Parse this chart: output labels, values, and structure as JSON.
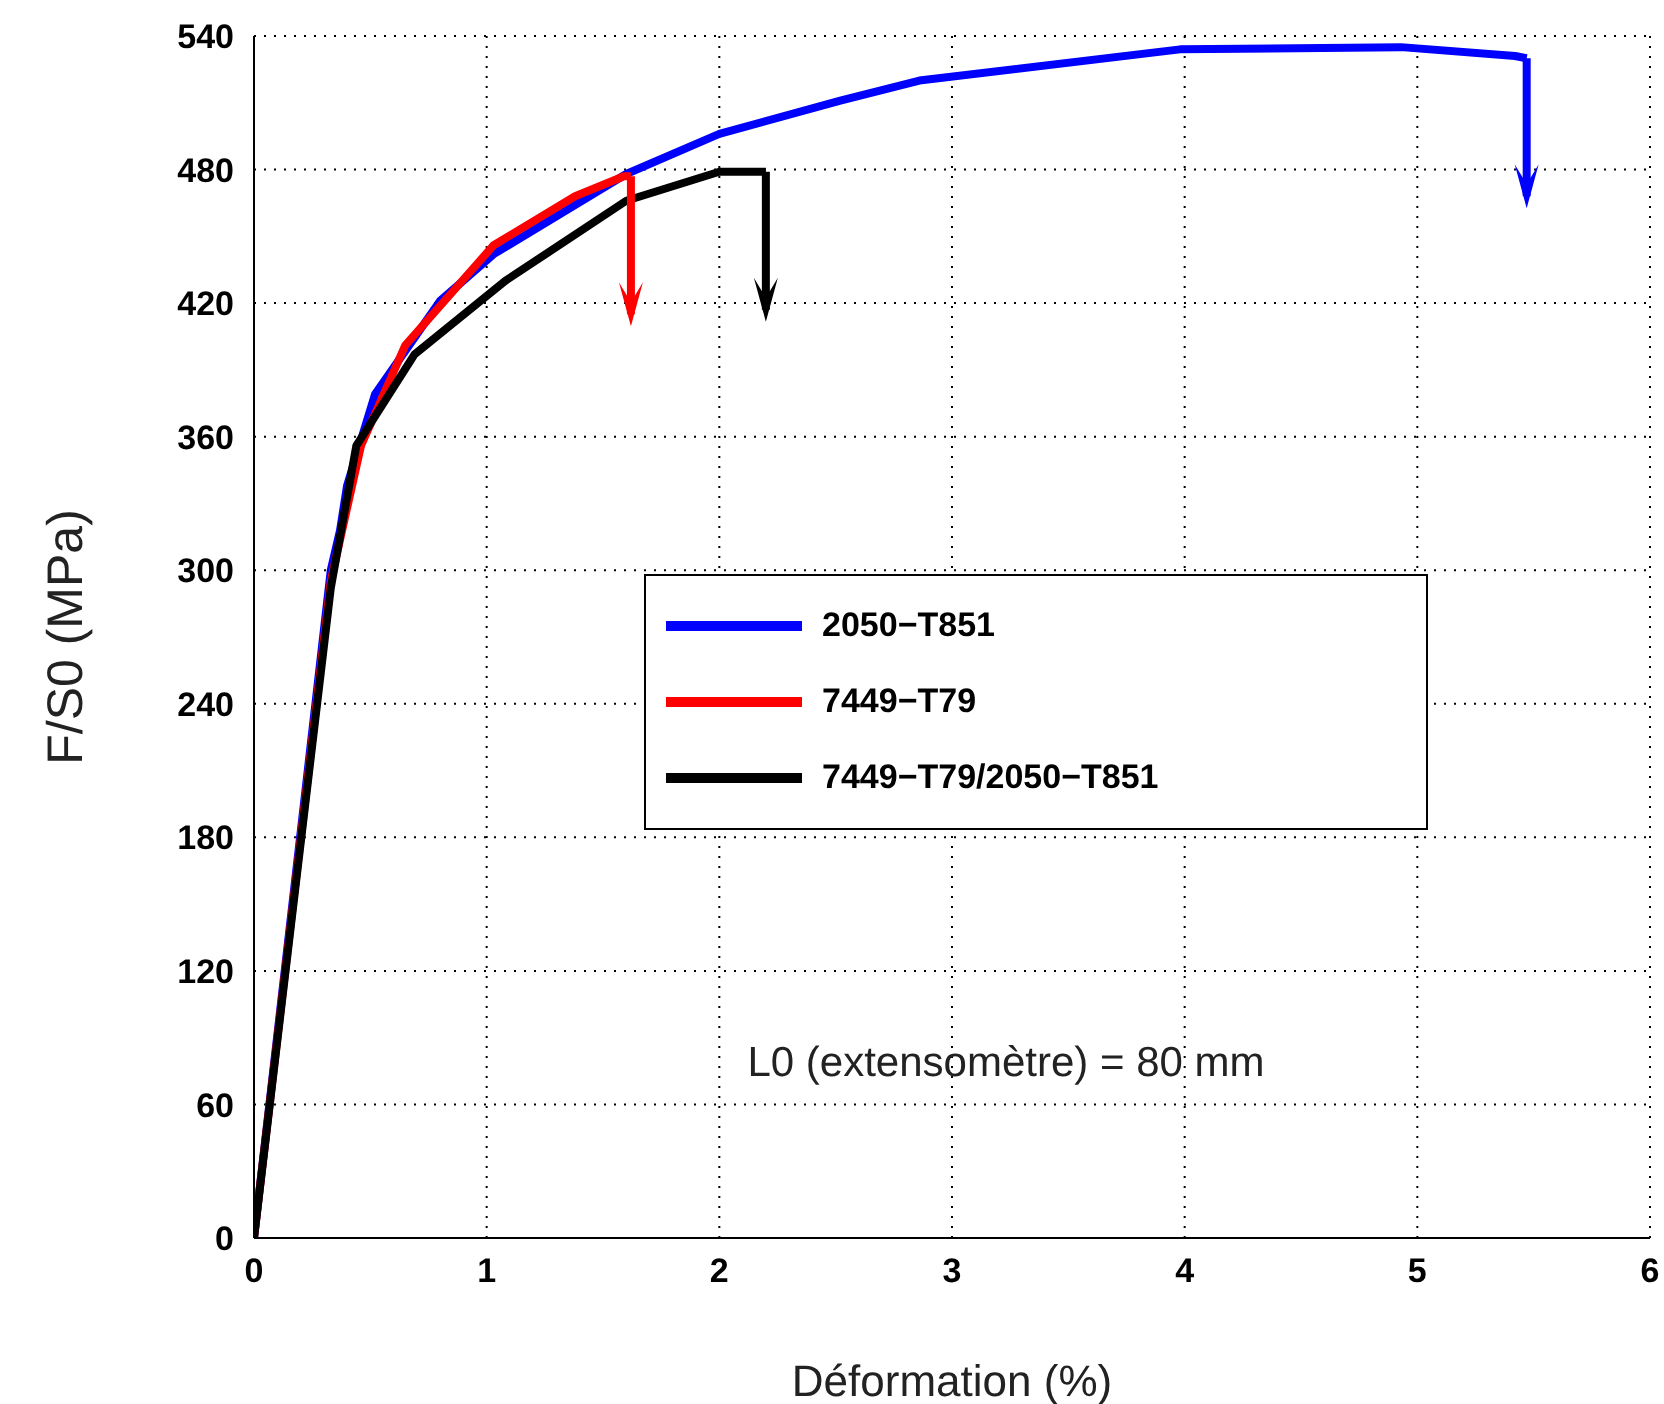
{
  "chart_data": {
    "type": "line",
    "xlabel": "Déformation (%)",
    "ylabel": "F/S0 (MPa)",
    "xlim": [
      0,
      6
    ],
    "xticks": [
      0,
      1,
      2,
      3,
      4,
      5,
      6
    ],
    "ylim": [
      0,
      540
    ],
    "yticks": [
      0,
      60,
      120,
      180,
      240,
      300,
      360,
      420,
      480,
      540
    ],
    "grid": true,
    "legend": "center",
    "line_style": "solid",
    "annotations": [
      "L0 (extensomètre) = 80 mm"
    ],
    "series": [
      {
        "name": "2050−T851",
        "color": "#0000ff",
        "x": [
          0,
          0.33,
          0.37,
          0.4,
          0.52,
          0.8,
          1.03,
          1.6,
          2.0,
          2.52,
          2.86,
          3.98,
          4.93,
          5.42,
          5.47
        ],
        "values": [
          0,
          300,
          318,
          338,
          379,
          421,
          442,
          478,
          496,
          511,
          520,
          534,
          535,
          531,
          530
        ]
      },
      {
        "name": "7449−T79",
        "color": "#ff0000",
        "x": [
          0,
          0.33,
          0.46,
          0.65,
          1.03,
          1.38,
          1.59,
          1.62
        ],
        "values": [
          0,
          295,
          356,
          401,
          446,
          468,
          477,
          477
        ]
      },
      {
        "name": "7449−T79/2050−T851",
        "color": "#000000",
        "x": [
          0,
          0.33,
          0.44,
          0.69,
          1.08,
          1.6,
          2.0,
          2.2
        ],
        "values": [
          0,
          292,
          356,
          397,
          430,
          466,
          479,
          479
        ]
      }
    ]
  }
}
